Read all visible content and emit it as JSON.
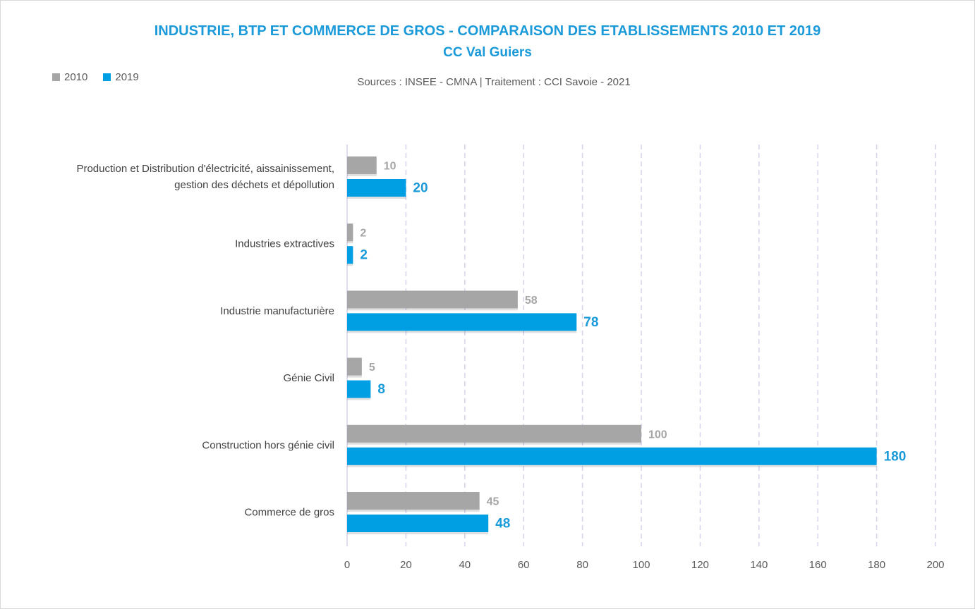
{
  "chart_data": {
    "type": "bar",
    "orientation": "horizontal",
    "title": "INDUSTRIE, BTP ET COMMERCE DE GROS - COMPARAISON DES ETABLISSEMENTS 2010 ET 2019",
    "subtitle": "CC Val Guiers",
    "source": "Sources : INSEE - CMNA  |  Traitement : CCI Savoie - 2021",
    "categories": [
      [
        "Production et Distribution d'électricité, aissainissement,",
        "gestion des déchets et dépollution"
      ],
      [
        "Industries extractives"
      ],
      [
        "Industrie manufacturière"
      ],
      [
        "Génie Civil"
      ],
      [
        "Construction hors génie civil"
      ],
      [
        "Commerce de gros"
      ]
    ],
    "series": [
      {
        "name": "2010",
        "color": "#a6a6a6",
        "label_color": "#a6a6a6",
        "values": [
          10,
          2,
          58,
          5,
          100,
          45
        ]
      },
      {
        "name": "2019",
        "color": "#009fe3",
        "label_color": "#1a9ad9",
        "values": [
          20,
          2,
          78,
          8,
          180,
          48
        ]
      }
    ],
    "xlim": [
      0,
      200
    ],
    "xticks": [
      0,
      20,
      40,
      60,
      80,
      100,
      120,
      140,
      160,
      180,
      200
    ],
    "grid": "vertical-dashed",
    "legend_position": "top-left"
  }
}
